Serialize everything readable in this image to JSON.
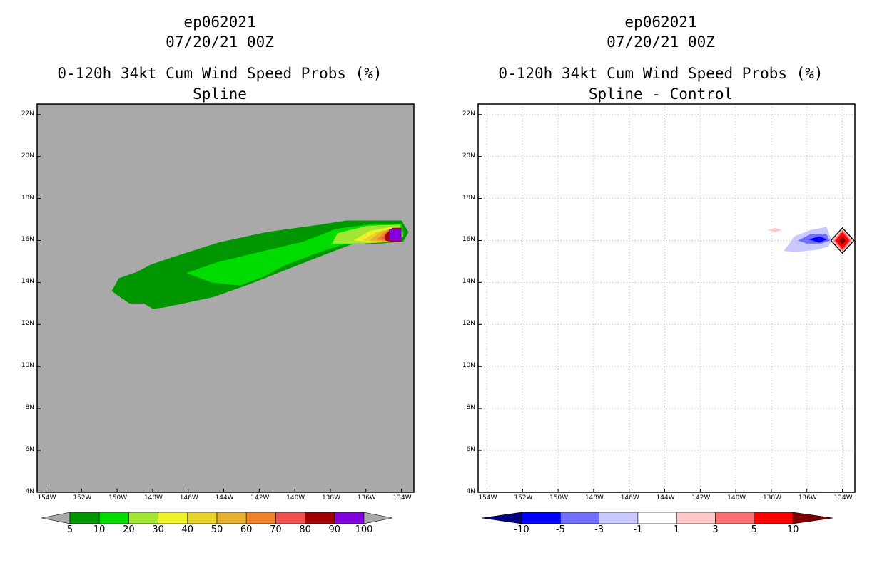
{
  "colors": {
    "map_background": "#a9a9a9",
    "frame": "#000000",
    "grid": "#b4b4b4"
  },
  "panels": [
    {
      "id": "left",
      "title_lines": [
        "ep062021",
        "07/20/21 00Z",
        "0-120h 34kt Cum Wind Speed Probs (%)",
        "Spline"
      ],
      "background": "#a9a9a9",
      "show_grid": false,
      "colorbar": {
        "labels": [
          "5",
          "10",
          "20",
          "30",
          "40",
          "50",
          "60",
          "70",
          "80",
          "90",
          "100"
        ],
        "colors": [
          "#009600",
          "#00dc00",
          "#a0e632",
          "#f0f028",
          "#e6d228",
          "#e6af2d",
          "#f08228",
          "#f05050",
          "#a00000",
          "#8200dc"
        ],
        "arrow_color": "#a9a9a9"
      }
    },
    {
      "id": "right",
      "title_lines": [
        "ep062021",
        "07/20/21 00Z",
        "0-120h 34kt Cum Wind Speed Probs (%)",
        "Spline - Control"
      ],
      "background": "#ffffff",
      "show_grid": true,
      "colorbar": {
        "labels": [
          "-10",
          "-5",
          "-3",
          "-1",
          "1",
          "3",
          "5",
          "10"
        ],
        "colors": [
          "#0000ff",
          "#6e6eff",
          "#c8c8ff",
          "#ffffff",
          "#ffc8c8",
          "#ff6e6e",
          "#ff0000"
        ],
        "left_arrow_color": "#000080",
        "right_arrow_color": "#800000"
      }
    }
  ],
  "chart_data": {
    "type": "map",
    "lon_ticks": [
      "154W",
      "152W",
      "150W",
      "148W",
      "146W",
      "144W",
      "142W",
      "140W",
      "138W",
      "136W",
      "134W"
    ],
    "lat_ticks": [
      "4N",
      "6N",
      "8N",
      "10N",
      "12N",
      "14N",
      "16N",
      "18N",
      "20N",
      "22N"
    ],
    "lon_range": [
      -154.5,
      -133.3
    ],
    "lat_range": [
      4,
      22.5
    ],
    "left_contours": [
      {
        "level": "5-10",
        "color": "#009600",
        "polygon": [
          [
            -150.0,
            13.4
          ],
          [
            -150.3,
            13.6
          ],
          [
            -149.9,
            14.2
          ],
          [
            -148.9,
            14.5
          ],
          [
            -148.1,
            14.85
          ],
          [
            -146.9,
            15.2
          ],
          [
            -144.3,
            15.9
          ],
          [
            -141.6,
            16.4
          ],
          [
            -138.6,
            16.75
          ],
          [
            -137.1,
            16.95
          ],
          [
            -135.1,
            16.95
          ],
          [
            -134.0,
            16.95
          ],
          [
            -133.6,
            16.4
          ],
          [
            -133.9,
            15.95
          ],
          [
            -135.3,
            15.85
          ],
          [
            -136.7,
            15.85
          ],
          [
            -138.4,
            15.3
          ],
          [
            -140.5,
            14.6
          ],
          [
            -142.6,
            13.9
          ],
          [
            -144.6,
            13.3
          ],
          [
            -147.4,
            12.8
          ],
          [
            -148.0,
            12.75
          ],
          [
            -148.5,
            13.0
          ],
          [
            -149.3,
            13.0
          ]
        ]
      },
      {
        "level": "10-20",
        "color": "#00dc00",
        "polygon": [
          [
            -146.1,
            14.45
          ],
          [
            -144.4,
            14.95
          ],
          [
            -142.0,
            15.45
          ],
          [
            -139.5,
            15.95
          ],
          [
            -137.7,
            16.55
          ],
          [
            -135.5,
            16.8
          ],
          [
            -134.0,
            16.8
          ],
          [
            -133.85,
            16.3
          ],
          [
            -134.2,
            16.0
          ],
          [
            -135.6,
            15.9
          ],
          [
            -137.3,
            15.8
          ],
          [
            -138.6,
            15.45
          ],
          [
            -140.6,
            14.8
          ],
          [
            -141.7,
            14.3
          ],
          [
            -143.1,
            13.85
          ],
          [
            -144.7,
            14.0
          ]
        ]
      },
      {
        "level": "20-30",
        "color": "#a0e632",
        "polygon": [
          [
            -137.9,
            15.85
          ],
          [
            -137.6,
            16.35
          ],
          [
            -135.9,
            16.7
          ],
          [
            -134.1,
            16.75
          ],
          [
            -133.9,
            16.2
          ],
          [
            -134.3,
            15.95
          ],
          [
            -136.2,
            15.85
          ]
        ]
      },
      {
        "level": "30-40",
        "color": "#f0f028",
        "polygon": [
          [
            -136.7,
            16.0
          ],
          [
            -135.8,
            16.45
          ],
          [
            -134.5,
            16.65
          ],
          [
            -134.0,
            16.5
          ],
          [
            -134.1,
            15.95
          ],
          [
            -135.4,
            15.9
          ]
        ]
      },
      {
        "level": "40-50",
        "color": "#e6d228",
        "polygon": [
          [
            -136.2,
            16.0
          ],
          [
            -135.4,
            16.4
          ],
          [
            -134.3,
            16.6
          ],
          [
            -134.05,
            16.2
          ],
          [
            -134.3,
            15.95
          ],
          [
            -135.2,
            15.92
          ]
        ]
      },
      {
        "level": "50-60",
        "color": "#e6af2d",
        "polygon": [
          [
            -135.8,
            16.0
          ],
          [
            -135.1,
            16.45
          ],
          [
            -134.2,
            16.55
          ],
          [
            -134.1,
            16.1
          ],
          [
            -134.5,
            15.93
          ]
        ]
      },
      {
        "level": "60-70",
        "color": "#f08228",
        "polygon": [
          [
            -135.4,
            16.05
          ],
          [
            -134.8,
            16.5
          ],
          [
            -134.15,
            16.55
          ],
          [
            -134.1,
            16.0
          ],
          [
            -134.7,
            15.95
          ]
        ]
      },
      {
        "level": "70-80",
        "color": "#f05050",
        "polygon": [
          [
            -135.1,
            16.1
          ],
          [
            -134.6,
            16.55
          ],
          [
            -134.1,
            16.6
          ],
          [
            -134.1,
            15.95
          ],
          [
            -134.7,
            15.95
          ]
        ]
      },
      {
        "level": "80-90",
        "color": "#a00000",
        "polygon": [
          [
            -134.9,
            16.3
          ],
          [
            -134.5,
            16.6
          ],
          [
            -134.0,
            16.6
          ],
          [
            -134.0,
            15.95
          ],
          [
            -134.6,
            15.95
          ],
          [
            -134.9,
            16.0
          ]
        ]
      },
      {
        "level": "90-100",
        "color": "#8200dc",
        "polygon": [
          [
            -134.7,
            16.55
          ],
          [
            -134.0,
            16.55
          ],
          [
            -134.0,
            16.0
          ],
          [
            -134.7,
            16.0
          ]
        ]
      }
    ],
    "right_contours": [
      {
        "level": "1-3",
        "color": "#ffc8c8",
        "polygon": [
          [
            -138.2,
            16.5
          ],
          [
            -137.8,
            16.6
          ],
          [
            -137.4,
            16.5
          ],
          [
            -137.8,
            16.4
          ]
        ]
      },
      {
        "level": "-3--1",
        "color": "#c8c8ff",
        "polygon": [
          [
            -137.3,
            15.5
          ],
          [
            -136.7,
            16.2
          ],
          [
            -135.8,
            16.5
          ],
          [
            -134.9,
            16.65
          ],
          [
            -134.6,
            16.0
          ],
          [
            -134.8,
            15.7
          ],
          [
            -135.5,
            15.55
          ],
          [
            -136.6,
            15.45
          ]
        ]
      },
      {
        "level": "-5--3",
        "color": "#6e6eff",
        "polygon": [
          [
            -136.5,
            16.0
          ],
          [
            -135.8,
            16.3
          ],
          [
            -134.9,
            16.3
          ],
          [
            -134.7,
            16.0
          ],
          [
            -135.2,
            15.85
          ],
          [
            -136.0,
            15.85
          ]
        ]
      },
      {
        "level": "-10--5",
        "color": "#0000ff",
        "polygon": [
          [
            -135.9,
            16.05
          ],
          [
            -135.3,
            16.2
          ],
          [
            -134.85,
            16.05
          ],
          [
            -135.3,
            15.9
          ]
        ]
      },
      {
        "level": "1-3",
        "color": "#ffc8c8",
        "polygon": [
          [
            -134.0,
            16.6
          ],
          [
            -133.35,
            16.0
          ],
          [
            -134.0,
            15.4
          ],
          [
            -134.65,
            16.0
          ]
        ]
      },
      {
        "level": "3-5",
        "color": "#ff6e6e",
        "polygon": [
          [
            -134.0,
            16.5
          ],
          [
            -133.5,
            16.0
          ],
          [
            -134.0,
            15.5
          ],
          [
            -134.5,
            16.0
          ]
        ]
      },
      {
        "level": "5-10",
        "color": "#ff0000",
        "polygon": [
          [
            -134.0,
            16.4
          ],
          [
            -133.6,
            16.0
          ],
          [
            -134.0,
            15.6
          ],
          [
            -134.4,
            16.0
          ]
        ]
      },
      {
        "level": ">10",
        "color": "#800000",
        "polygon": [
          [
            -134.0,
            16.15
          ],
          [
            -133.85,
            16.0
          ],
          [
            -134.0,
            15.85
          ],
          [
            -134.15,
            16.0
          ]
        ]
      }
    ]
  }
}
